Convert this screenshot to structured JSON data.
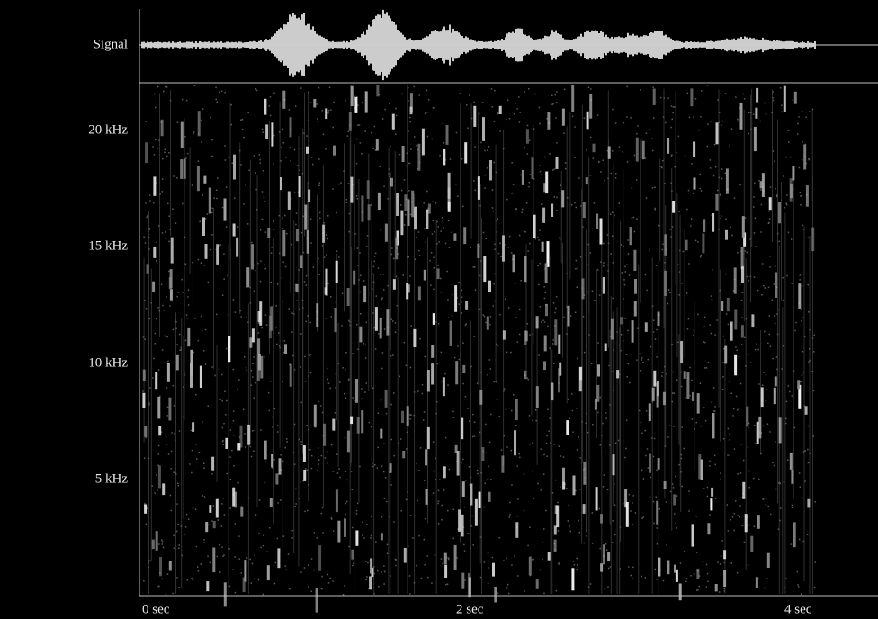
{
  "signal_label": "Signal",
  "frequency_labels": [
    "20 kHz",
    "15 kHz",
    "10 kHz",
    "5 kHz"
  ],
  "time_labels": [
    "0 sec",
    "2 sec",
    "4 sec"
  ]
}
